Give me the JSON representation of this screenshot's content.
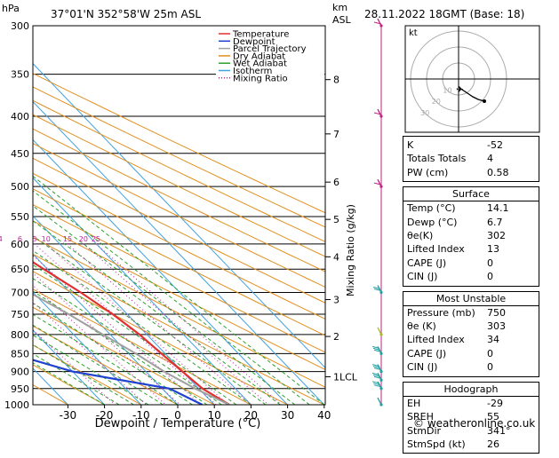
{
  "header": {
    "hpa_label": "hPa",
    "location": "37°01'N  352°58'W  25m  ASL",
    "km_label": "km",
    "asl_label": "ASL",
    "datetime": "28.11.2022  18GMT  (Base: 18)"
  },
  "legend": [
    {
      "label": "Temperature",
      "color": "#e03030",
      "style": "solid"
    },
    {
      "label": "Dewpoint",
      "color": "#2040d0",
      "style": "solid"
    },
    {
      "label": "Parcel Trajectory",
      "color": "#a0a0a0",
      "style": "solid"
    },
    {
      "label": "Dry Adiabat",
      "color": "#e09020",
      "style": "solid"
    },
    {
      "label": "Wet Adiabat",
      "color": "#30a030",
      "style": "solid"
    },
    {
      "label": "Isotherm",
      "color": "#40a0e0",
      "style": "solid"
    },
    {
      "label": "Mixing Ratio",
      "color": "#c020a0",
      "style": "dotted"
    }
  ],
  "axes": {
    "xlabel": "Dewpoint / Temperature (°C)",
    "ylabel_right": "Mixing Ratio (g/kg)",
    "pressure_ticks": [
      "300",
      "350",
      "400",
      "450",
      "500",
      "550",
      "600",
      "650",
      "700",
      "750",
      "800",
      "850",
      "900",
      "950",
      "1000"
    ],
    "temp_ticks": [
      "-30",
      "-20",
      "-10",
      "0",
      "10",
      "20",
      "30",
      "40"
    ],
    "km_ticks": [
      {
        "label": "8",
        "p": 356
      },
      {
        "label": "7",
        "p": 423
      },
      {
        "label": "6",
        "p": 493
      },
      {
        "label": "5",
        "p": 555
      },
      {
        "label": "4",
        "p": 625
      },
      {
        "label": "3",
        "p": 716
      },
      {
        "label": "2",
        "p": 805
      },
      {
        "label": "1LCL",
        "p": 915
      }
    ],
    "mixing_ratio_labels": [
      "1",
      "2",
      "3",
      "4",
      "6",
      "8",
      "10",
      "15",
      "20",
      "25"
    ]
  },
  "chart_data": {
    "type": "line",
    "title": "37°01'N  352°58'W  25m  ASL",
    "xlabel": "Dewpoint / Temperature (°C)",
    "ylabel": "hPa",
    "x_range": [
      -35,
      40
    ],
    "p_range": [
      300,
      1000
    ],
    "skew_note": "skew-T log-p diagram",
    "series": [
      {
        "name": "Temperature",
        "color": "#e03030",
        "points": [
          [
            1000,
            14.1
          ],
          [
            950,
            11
          ],
          [
            900,
            10
          ],
          [
            850,
            9
          ],
          [
            800,
            8
          ],
          [
            750,
            6
          ],
          [
            700,
            3
          ],
          [
            650,
            -1
          ],
          [
            600,
            -5
          ],
          [
            550,
            -9
          ],
          [
            500,
            -14
          ],
          [
            450,
            -19
          ],
          [
            400,
            -25
          ],
          [
            350,
            -33
          ],
          [
            300,
            -41
          ]
        ]
      },
      {
        "name": "Dewpoint",
        "color": "#2040d0",
        "points": [
          [
            1000,
            6.7
          ],
          [
            950,
            2
          ],
          [
            900,
            -20
          ],
          [
            850,
            -32
          ],
          [
            800,
            -40
          ],
          [
            750,
            -37
          ],
          [
            700,
            -30
          ],
          [
            650,
            -29
          ],
          [
            600,
            -27
          ],
          [
            550,
            -26
          ],
          [
            500,
            -16
          ],
          [
            450,
            -32
          ],
          [
            400,
            -31
          ],
          [
            350,
            -42
          ],
          [
            300,
            -51
          ]
        ]
      },
      {
        "name": "Parcel Trajectory",
        "color": "#a0a0a0",
        "points": [
          [
            1000,
            14.1
          ],
          [
            950,
            9
          ],
          [
            900,
            5
          ],
          [
            850,
            2
          ],
          [
            800,
            -2
          ],
          [
            750,
            -6
          ],
          [
            700,
            -11
          ],
          [
            650,
            -16
          ],
          [
            600,
            -21
          ],
          [
            550,
            -27
          ],
          [
            500,
            -33
          ],
          [
            450,
            -40
          ],
          [
            400,
            -48
          ],
          [
            350,
            -56
          ],
          [
            300,
            -65
          ]
        ]
      }
    ]
  },
  "hodograph": {
    "label": "kt",
    "ring_labels": [
      "10",
      "20",
      "30"
    ]
  },
  "indices": [
    {
      "label": "K",
      "value": "-52"
    },
    {
      "label": "Totals Totals",
      "value": "4"
    },
    {
      "label": "PW (cm)",
      "value": "0.58"
    }
  ],
  "surface": {
    "title": "Surface",
    "rows": [
      {
        "label": "Temp (°C)",
        "value": "14.1"
      },
      {
        "label": "Dewp (°C)",
        "value": "6.7"
      },
      {
        "label": "θe(K)",
        "value": "302"
      },
      {
        "label": "Lifted Index",
        "value": "13"
      },
      {
        "label": "CAPE (J)",
        "value": "0"
      },
      {
        "label": "CIN (J)",
        "value": "0"
      }
    ]
  },
  "most_unstable": {
    "title": "Most Unstable",
    "rows": [
      {
        "label": "Pressure (mb)",
        "value": "750"
      },
      {
        "label": "θe (K)",
        "value": "303"
      },
      {
        "label": "Lifted Index",
        "value": "34"
      },
      {
        "label": "CAPE (J)",
        "value": "0"
      },
      {
        "label": "CIN (J)",
        "value": "0"
      }
    ]
  },
  "hodograph_table": {
    "title": "Hodograph",
    "rows": [
      {
        "label": "EH",
        "value": "-29"
      },
      {
        "label": "SREH",
        "value": "55"
      },
      {
        "label": "StmDir",
        "value": "341°"
      },
      {
        "label": "StmSpd (kt)",
        "value": "26"
      }
    ]
  },
  "footer": {
    "copyright": "© weatheronline.co.uk"
  },
  "colors": {
    "temperature": "#e03030",
    "dewpoint": "#2040d0",
    "parcel": "#a0a0a0",
    "dry_adiabat": "#e09020",
    "wet_adiabat": "#30a030",
    "isotherm": "#40a0e0",
    "mixing_ratio": "#c020a0",
    "wind_barb": "#c02080",
    "wind_barb_low": "#20a0a0"
  }
}
